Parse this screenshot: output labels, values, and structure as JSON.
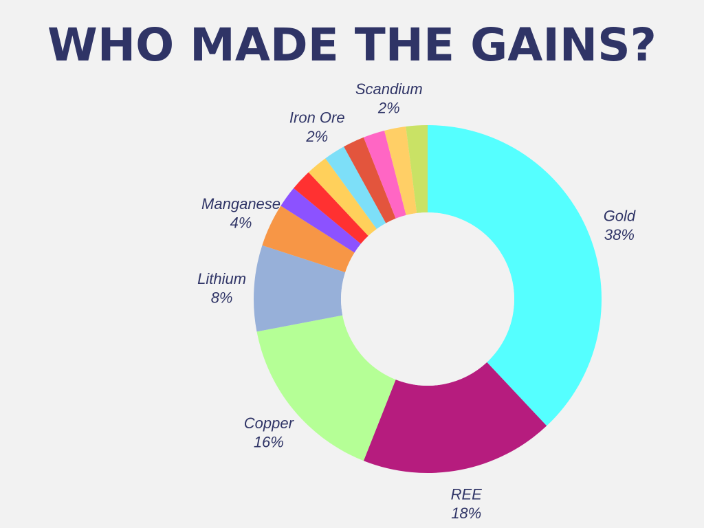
{
  "chart_data": {
    "type": "pie",
    "style": "donut",
    "title": "WHO MADE THE GAINS?",
    "start_angle_deg": 0,
    "direction": "clockwise",
    "slices": [
      {
        "label": "Gold",
        "value": 38,
        "value_label": "38%",
        "color": "#55ffff"
      },
      {
        "label": "REE",
        "value": 18,
        "value_label": "18%",
        "color": "#b61c7e"
      },
      {
        "label": "Copper",
        "value": 16,
        "value_label": "16%",
        "color": "#b5ff96"
      },
      {
        "label": "Lithium",
        "value": 8,
        "value_label": "8%",
        "color": "#97b0d9"
      },
      {
        "label": "Manganese",
        "value": 4,
        "value_label": "4%",
        "color": "#f79646"
      },
      {
        "label": "",
        "value": 2,
        "value_label": "",
        "color": "#8c52ff"
      },
      {
        "label": "",
        "value": 2,
        "value_label": "",
        "color": "#ff3131"
      },
      {
        "label": "",
        "value": 2,
        "value_label": "",
        "color": "#ffd05b"
      },
      {
        "label": "Iron Ore",
        "value": 2,
        "value_label": "2%",
        "color": "#7ddff8"
      },
      {
        "label": "",
        "value": 2,
        "value_label": "",
        "color": "#e3553d"
      },
      {
        "label": "",
        "value": 2,
        "value_label": "",
        "color": "#ff66c4"
      },
      {
        "label": "Scandium",
        "value": 2,
        "value_label": "2%",
        "color": "#ffcf66"
      },
      {
        "label": "",
        "value": 2,
        "value_label": "",
        "color": "#c9e265"
      }
    ]
  }
}
